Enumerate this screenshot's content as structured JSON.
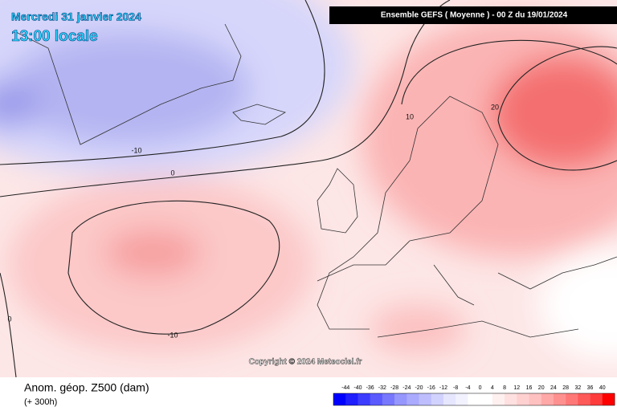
{
  "header": {
    "date": "Mercredi 31 janvier 2024",
    "time": "13:00 locale",
    "run": "Ensemble GEFS  ( Moyenne )  -  00 Z du 19/01/2024"
  },
  "contour_labels": [
    -10,
    0,
    10,
    20,
    -10,
    0
  ],
  "copyright": "Copyright © 2024 Meteociel.fr",
  "legend": {
    "title": "Anom. géop. Z500 (dam)",
    "subtitle": "(+ 300h)",
    "scale": [
      -44,
      -40,
      -36,
      -32,
      -28,
      -24,
      -20,
      -16,
      -12,
      -8,
      -4,
      0,
      4,
      8,
      12,
      16,
      20,
      24,
      28,
      32,
      36,
      40
    ],
    "colors": [
      "#0000ff",
      "#1e1eff",
      "#3c3cff",
      "#5a5aff",
      "#7878ff",
      "#9696ff",
      "#aaaaff",
      "#bebeff",
      "#d2d2ff",
      "#e6e6ff",
      "#f2f2ff",
      "#ffffff",
      "#ffffff",
      "#fff0f0",
      "#ffe0e0",
      "#ffd0d0",
      "#ffc0c0",
      "#ffa8a8",
      "#ff9090",
      "#ff7878",
      "#ff5a5a",
      "#ff3c3c",
      "#ff0000"
    ]
  }
}
